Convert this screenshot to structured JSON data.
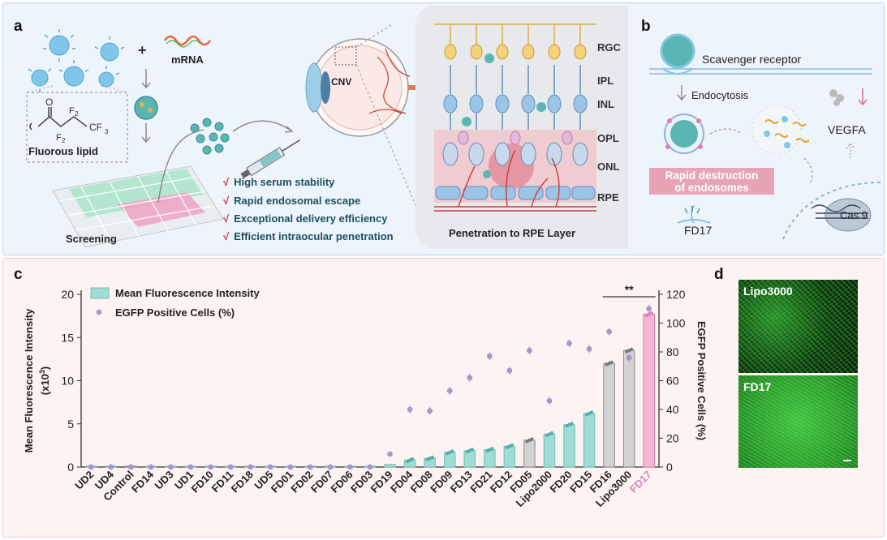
{
  "panel_a": {
    "label": "a",
    "mrna_label": "mRNA",
    "plus": "+",
    "fluorous_lipid_label": "Fluorous lipid",
    "chem": {
      "o": "O",
      "f2a": "F",
      "f2b": "F",
      "cf3": "CF",
      "sub2a": "2",
      "sub2b": "2",
      "sub3": "3"
    },
    "screening_label": "Screening",
    "cnv_label": "CNV",
    "features": [
      "High serum stability",
      "Rapid endosomal escape",
      "Exceptional delivery efficiency",
      "Efficient intraocular penetration"
    ],
    "check_mark": "√",
    "retina_layers": [
      "RGC",
      "IPL",
      "INL",
      "OPL",
      "ONL",
      "RPE"
    ],
    "retina_caption": "Penetration to RPE Layer"
  },
  "panel_b": {
    "label": "b",
    "scavenger": "Scavenger receptor",
    "endocytosis": "Endocytosis",
    "vegfa": "VEGFA",
    "rapid_line1": "Rapid destruction",
    "rapid_line2": "of endosomes",
    "cas9": "Cas 9",
    "fd17": "FD17"
  },
  "panel_c": {
    "label": "c"
  },
  "panel_d": {
    "label": "d",
    "images": [
      "Lipo3000",
      "FD17"
    ]
  },
  "colors": {
    "teal": "#9fdcd3",
    "gray": "#d2d2d2",
    "pink": "#f4b8d4",
    "purple": "#a795d0",
    "dot_pink": "#e07fb3",
    "dot_gray": "#7a7a7a"
  },
  "chart_data": {
    "type": "bar",
    "title": "",
    "ylabel": "Mean Fluorescence Intensity (x10³)",
    "ylabel_line1": "Mean Fluorescence Intensity",
    "ylabel_line2": "(x10",
    "ylabel_sup": "3",
    "ylabel_close": ")",
    "y2label": "EGFP Positive Cells (%)",
    "ylim": [
      0,
      20
    ],
    "y2lim": [
      0,
      120
    ],
    "yticks": [
      "0",
      "5",
      "10",
      "15",
      "20"
    ],
    "y2ticks": [
      "0",
      "20",
      "40",
      "60",
      "80",
      "100",
      "120"
    ],
    "legend": {
      "bar": "Mean Fluorescence Intensity",
      "dot": "EGFP Positive Cells (%)"
    },
    "significance": "**",
    "categories": [
      "UD2",
      "UD4",
      "Control",
      "FD14",
      "UD3",
      "UD1",
      "FD10",
      "FD11",
      "FD18",
      "UD5",
      "FD01",
      "FD02",
      "FD07",
      "FD06",
      "FD03",
      "FD19",
      "FD04",
      "FD08",
      "FD09",
      "FD13",
      "FD21",
      "FD12",
      "FD05",
      "Lipo2000",
      "FD20",
      "FD15",
      "FD16",
      "Lipo3000",
      "FD17"
    ],
    "bar_groups": [
      "teal",
      "teal",
      "gray",
      "teal",
      "teal",
      "teal",
      "teal",
      "teal",
      "teal",
      "teal",
      "teal",
      "teal",
      "teal",
      "teal",
      "teal",
      "teal",
      "teal",
      "teal",
      "teal",
      "teal",
      "teal",
      "teal",
      "gray",
      "teal",
      "teal",
      "teal",
      "gray",
      "gray",
      "pink"
    ],
    "series": [
      {
        "name": "Mean Fluorescence Intensity",
        "axis": "left",
        "values": [
          0.1,
          0.1,
          0.1,
          0.1,
          0.1,
          0.1,
          0.1,
          0.1,
          0.1,
          0.1,
          0.1,
          0.1,
          0.1,
          0.1,
          0.1,
          0.3,
          0.8,
          1.0,
          1.7,
          1.9,
          2.0,
          2.4,
          3.1,
          3.8,
          4.9,
          6.2,
          12.0,
          13.5,
          17.7
        ]
      },
      {
        "name": "EGFP Positive Cells (%)",
        "axis": "right",
        "values": [
          0,
          0,
          0,
          0,
          0,
          0,
          0,
          0,
          0,
          0,
          0,
          0,
          0,
          0,
          0,
          9,
          40,
          39,
          53,
          62,
          77,
          67,
          81,
          46,
          86,
          82,
          94,
          76,
          110
        ]
      }
    ]
  }
}
